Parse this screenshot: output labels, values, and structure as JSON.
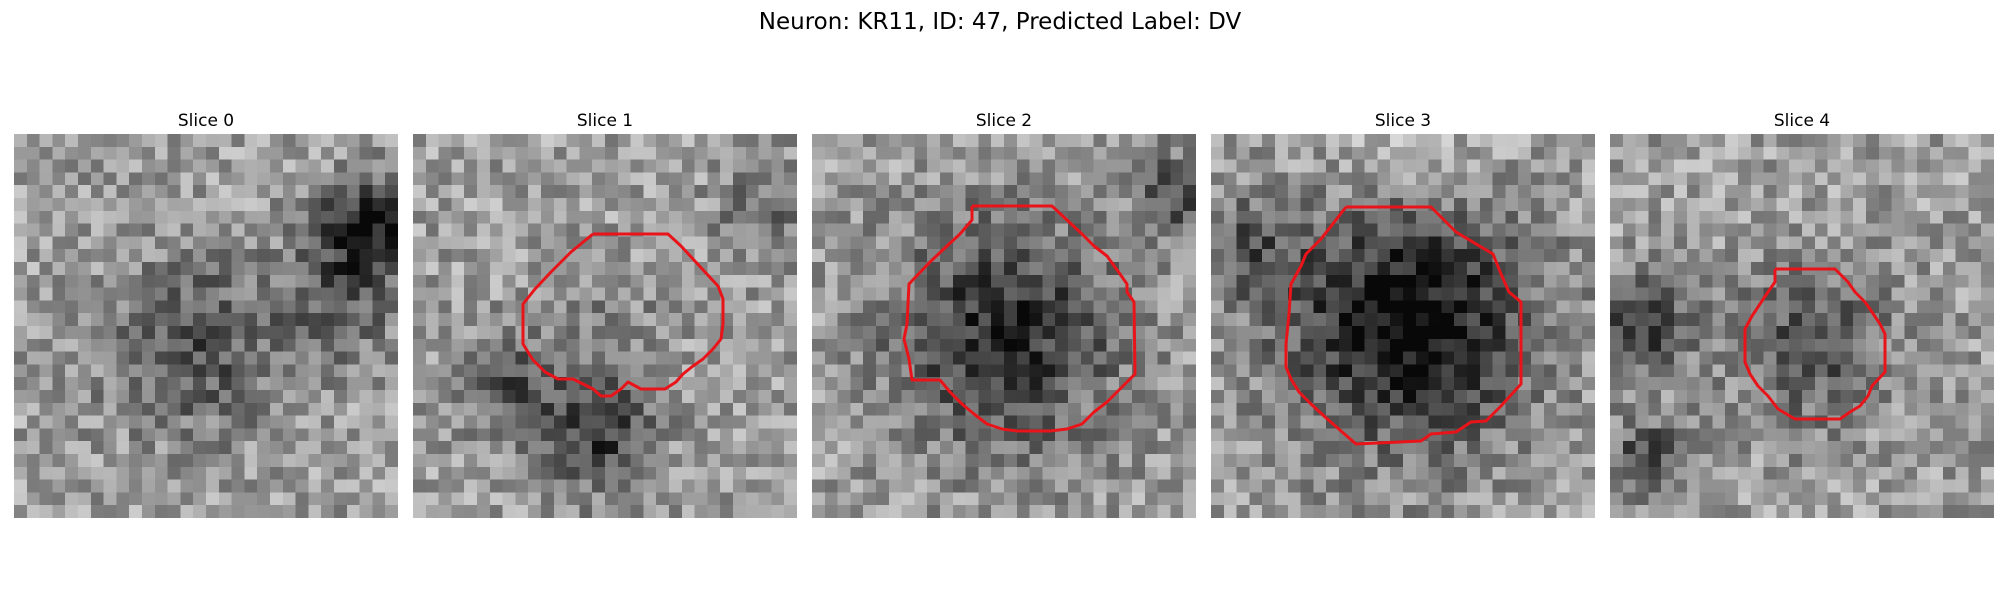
{
  "figure": {
    "title": "Neuron: KR11, ID: 47, Predicted Label: DV"
  },
  "contour_color": "#e8141a",
  "colormap": "grayscale",
  "panels": [
    {
      "title": "Slice 0",
      "has_roi": false
    },
    {
      "title": "Slice 1",
      "has_roi": true
    },
    {
      "title": "Slice 2",
      "has_roi": true
    },
    {
      "title": "Slice 3",
      "has_roi": true
    },
    {
      "title": "Slice 4",
      "has_roi": true
    }
  ]
}
